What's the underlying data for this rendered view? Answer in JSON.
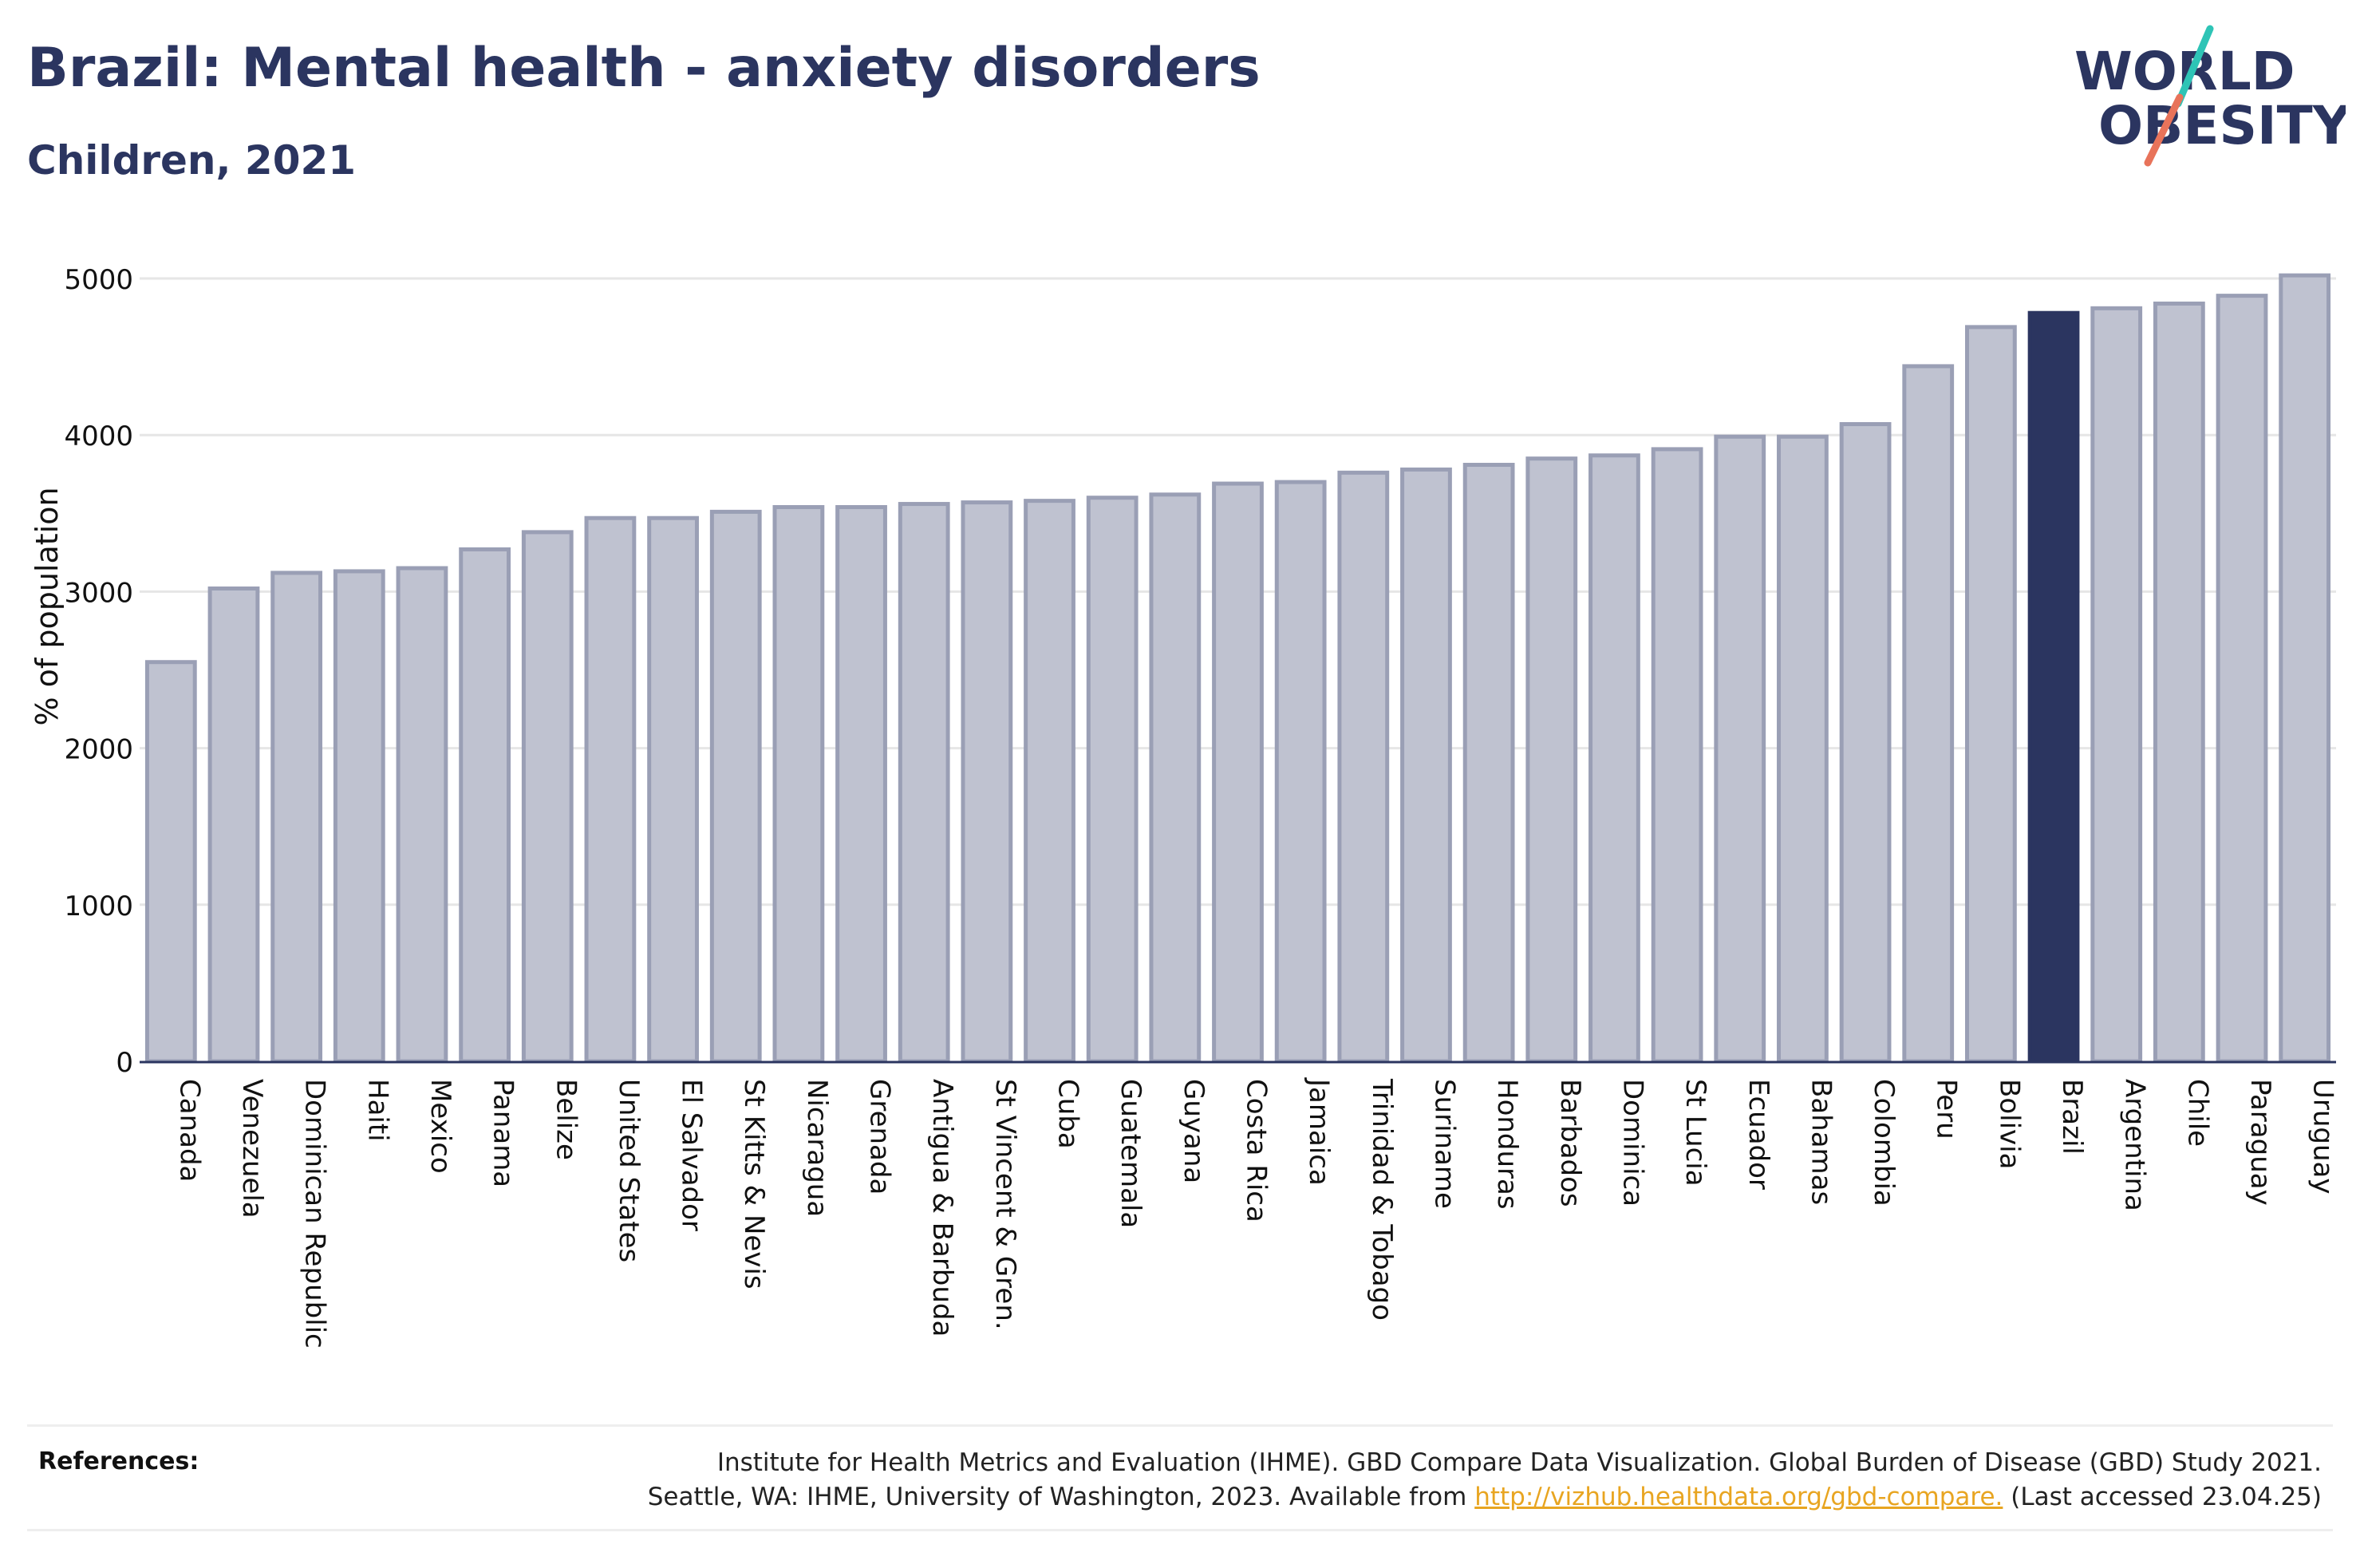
{
  "header": {
    "title": "Brazil: Mental health - anxiety disorders",
    "subtitle": "Children, 2021"
  },
  "logo": {
    "line1": "WORLD",
    "line2": "OBESITY",
    "text_color": "#2b3560",
    "slash_teal": "#2ec4b6",
    "slash_coral": "#e8735a"
  },
  "colors": {
    "bar_fill": "#bfc2d0",
    "bar_stroke": "#9a9fb5",
    "highlight_fill": "#2b3560",
    "grid": "#e6e6e6",
    "axis": "#2b3560",
    "text": "#111111"
  },
  "chart_data": {
    "type": "bar",
    "title": "",
    "xlabel": "",
    "ylabel": "% of population",
    "ylim": [
      0,
      5250
    ],
    "yticks": [
      0,
      1000,
      2000,
      3000,
      4000,
      5000
    ],
    "grid": true,
    "highlight": "Brazil",
    "categories": [
      "Canada",
      "Venezuela",
      "Dominican Republic",
      "Haiti",
      "Mexico",
      "Panama",
      "Belize",
      "United States",
      "El Salvador",
      "St Kitts & Nevis",
      "Nicaragua",
      "Grenada",
      "Antigua & Barbuda",
      "St Vincent & Gren.",
      "Cuba",
      "Guatemala",
      "Guyana",
      "Costa Rica",
      "Jamaica",
      "Trinidad & Tobago",
      "Suriname",
      "Honduras",
      "Barbados",
      "Dominica",
      "St Lucia",
      "Ecuador",
      "Bahamas",
      "Colombia",
      "Peru",
      "Bolivia",
      "Brazil",
      "Argentina",
      "Chile",
      "Paraguay",
      "Uruguay"
    ],
    "values": [
      2550,
      3020,
      3120,
      3130,
      3150,
      3270,
      3380,
      3470,
      3470,
      3510,
      3540,
      3540,
      3560,
      3570,
      3580,
      3600,
      3620,
      3690,
      3700,
      3760,
      3780,
      3810,
      3850,
      3870,
      3910,
      3990,
      3990,
      4070,
      4440,
      4690,
      4780,
      4810,
      4840,
      4890,
      5020
    ]
  },
  "references": {
    "label": "References:",
    "line1": "Institute for Health Metrics and Evaluation (IHME). GBD Compare Data Visualization. Global Burden of Disease (GBD) Study 2021.",
    "line2_prefix": "Seattle, WA: IHME, University of Washington, 2023. Available from ",
    "link": "http://vizhub.healthdata.org/gbd-compare.",
    "line2_suffix": " (Last accessed 23.04.25)"
  }
}
